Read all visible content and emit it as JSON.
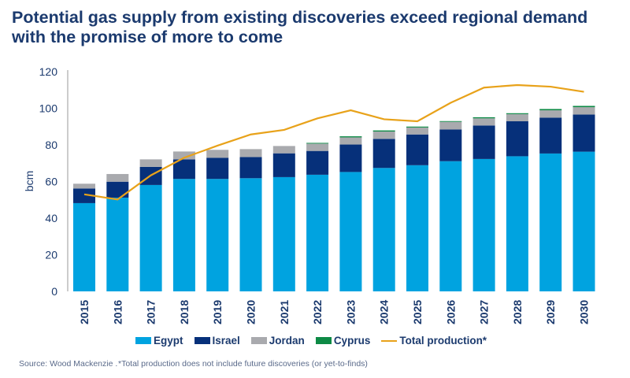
{
  "title": "Potential gas supply from existing discoveries exceed regional demand with the promise of more to come",
  "source": "Source: Wood Mackenzie .",
  "footnote": "*Total production does not include future discoveries (or yet-to-finds)",
  "colors": {
    "Egypt": "#00a3e0",
    "Israel": "#06307a",
    "Jordan": "#a9aaae",
    "Cyprus": "#0d8a45",
    "Total production*": "#e8a21a"
  },
  "chart_data": {
    "type": "bar",
    "stacked": true,
    "title": "Potential gas supply from existing discoveries exceed regional demand with the promise of more to come",
    "xlabel": "",
    "ylabel": "bcm",
    "ylim": [
      0,
      120
    ],
    "yticks": [
      0,
      20,
      40,
      60,
      80,
      100,
      120
    ],
    "grid": false,
    "legend": "bottom",
    "categories": [
      "2015",
      "2016",
      "2017",
      "2018",
      "2019",
      "2020",
      "2021",
      "2022",
      "2023",
      "2024",
      "2025",
      "2026",
      "2027",
      "2028",
      "2029",
      "2030"
    ],
    "series": [
      {
        "name": "Egypt",
        "type": "bar",
        "values": [
          48.2,
          51.2,
          58.1,
          61.4,
          61.4,
          61.8,
          62.4,
          63.7,
          65.2,
          67.4,
          68.9,
          71.1,
          72.3,
          73.8,
          75.3,
          76.3
        ]
      },
      {
        "name": "Israel",
        "type": "bar",
        "values": [
          8.0,
          8.7,
          9.9,
          10.7,
          11.6,
          11.6,
          13.0,
          13.0,
          15.0,
          15.9,
          16.8,
          17.3,
          18.3,
          19.1,
          19.6,
          20.3
        ]
      },
      {
        "name": "Jordan",
        "type": "bar",
        "values": [
          2.6,
          4.2,
          4.1,
          4.3,
          4.3,
          4.3,
          4.0,
          4.0,
          3.9,
          4.0,
          3.8,
          4.2,
          3.9,
          3.9,
          4.0,
          4.0
        ]
      },
      {
        "name": "Cyprus",
        "type": "bar",
        "values": [
          0,
          0,
          0,
          0,
          0,
          0,
          0,
          0.4,
          0.6,
          0.6,
          0.5,
          0.4,
          0.6,
          0.5,
          0.7,
          0.7
        ]
      },
      {
        "name": "Total production*",
        "type": "line",
        "values": [
          53.0,
          50.2,
          63.4,
          73.0,
          79.6,
          85.7,
          88.2,
          94.5,
          98.9,
          94.0,
          92.9,
          103.0,
          111.3,
          112.7,
          111.8,
          109.0
        ]
      }
    ]
  }
}
